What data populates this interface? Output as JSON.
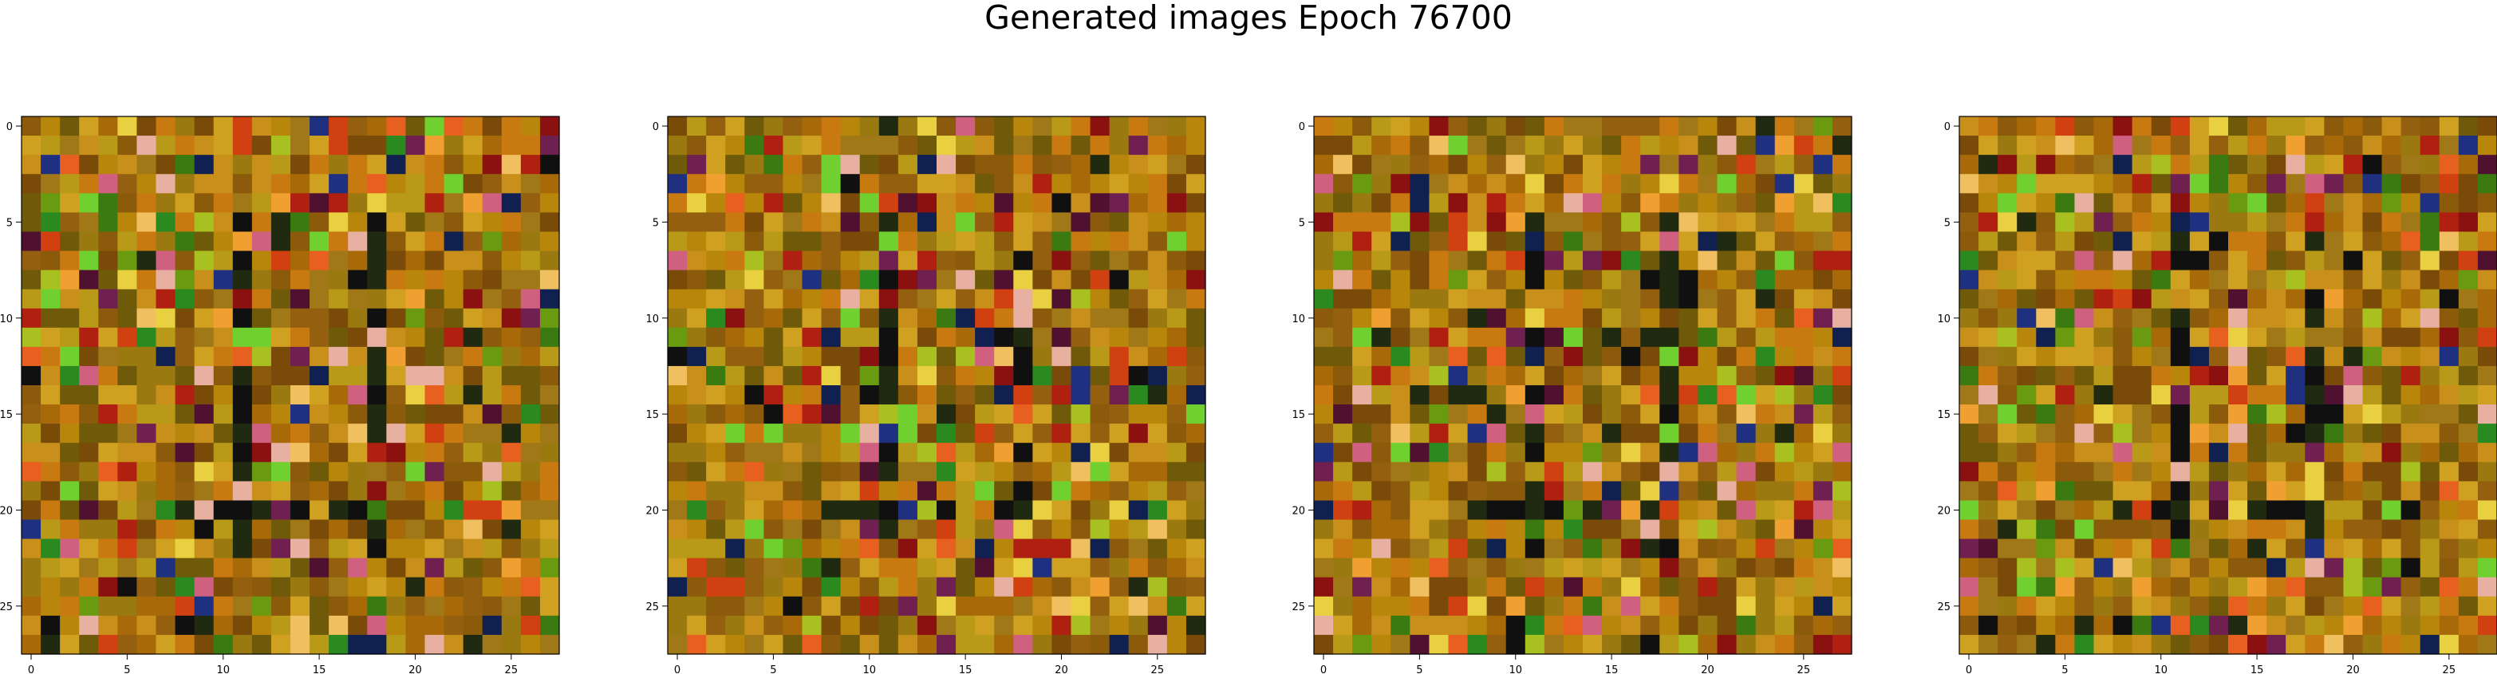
{
  "figure": {
    "title": "Generated images Epoch 76700"
  },
  "chart_data": [
    {
      "type": "heatmap",
      "title": "",
      "grid_size": 28,
      "xlim": [
        -0.5,
        27.5
      ],
      "ylim": [
        27.5,
        -0.5
      ],
      "x_ticks": [
        0,
        5,
        10,
        15,
        20,
        25
      ],
      "y_ticks": [
        0,
        5,
        10,
        15,
        20,
        25
      ],
      "x_tick_labels": [
        "0",
        "5",
        "10",
        "15",
        "20",
        "25"
      ],
      "y_tick_labels": [
        "0",
        "5",
        "10",
        "15",
        "20",
        "25"
      ],
      "seed": 11
    },
    {
      "type": "heatmap",
      "title": "",
      "grid_size": 28,
      "xlim": [
        -0.5,
        27.5
      ],
      "ylim": [
        27.5,
        -0.5
      ],
      "x_ticks": [
        0,
        5,
        10,
        15,
        20,
        25
      ],
      "y_ticks": [
        0,
        5,
        10,
        15,
        20,
        25
      ],
      "x_tick_labels": [
        "0",
        "5",
        "10",
        "15",
        "20",
        "25"
      ],
      "y_tick_labels": [
        "0",
        "5",
        "10",
        "15",
        "20",
        "25"
      ],
      "seed": 23
    },
    {
      "type": "heatmap",
      "title": "",
      "grid_size": 28,
      "xlim": [
        -0.5,
        27.5
      ],
      "ylim": [
        27.5,
        -0.5
      ],
      "x_ticks": [
        0,
        5,
        10,
        15,
        20,
        25
      ],
      "y_ticks": [
        0,
        5,
        10,
        15,
        20,
        25
      ],
      "x_tick_labels": [
        "0",
        "5",
        "10",
        "15",
        "20",
        "25"
      ],
      "y_tick_labels": [
        "0",
        "5",
        "10",
        "15",
        "20",
        "25"
      ],
      "seed": 37
    },
    {
      "type": "heatmap",
      "title": "",
      "grid_size": 28,
      "xlim": [
        -0.5,
        27.5
      ],
      "ylim": [
        27.5,
        -0.5
      ],
      "x_ticks": [
        0,
        5,
        10,
        15,
        20,
        25
      ],
      "y_ticks": [
        0,
        5,
        10,
        15,
        20,
        25
      ],
      "x_tick_labels": [
        "0",
        "5",
        "10",
        "15",
        "20",
        "25"
      ],
      "y_tick_labels": [
        "0",
        "5",
        "10",
        "15",
        "20",
        "25"
      ],
      "seed": 53
    }
  ],
  "palette": {
    "base": [
      "#b8860b",
      "#c8901a",
      "#a86a08",
      "#8b5a0a",
      "#7a4a08",
      "#9a7a10",
      "#b89a18",
      "#c87a10",
      "#d0a020",
      "#946010",
      "#6e5a08",
      "#a07818"
    ],
    "accent": [
      "#d04010",
      "#b02010",
      "#8b1010",
      "#e86020",
      "#f0a030",
      "#e8d040",
      "#a8c020",
      "#6a9a10",
      "#3a7a10",
      "#2a8a20",
      "#e8b0a0",
      "#d06080",
      "#702050",
      "#501030",
      "#203080",
      "#102050",
      "#101010",
      "#202a10",
      "#70d030",
      "#f0c060"
    ]
  }
}
